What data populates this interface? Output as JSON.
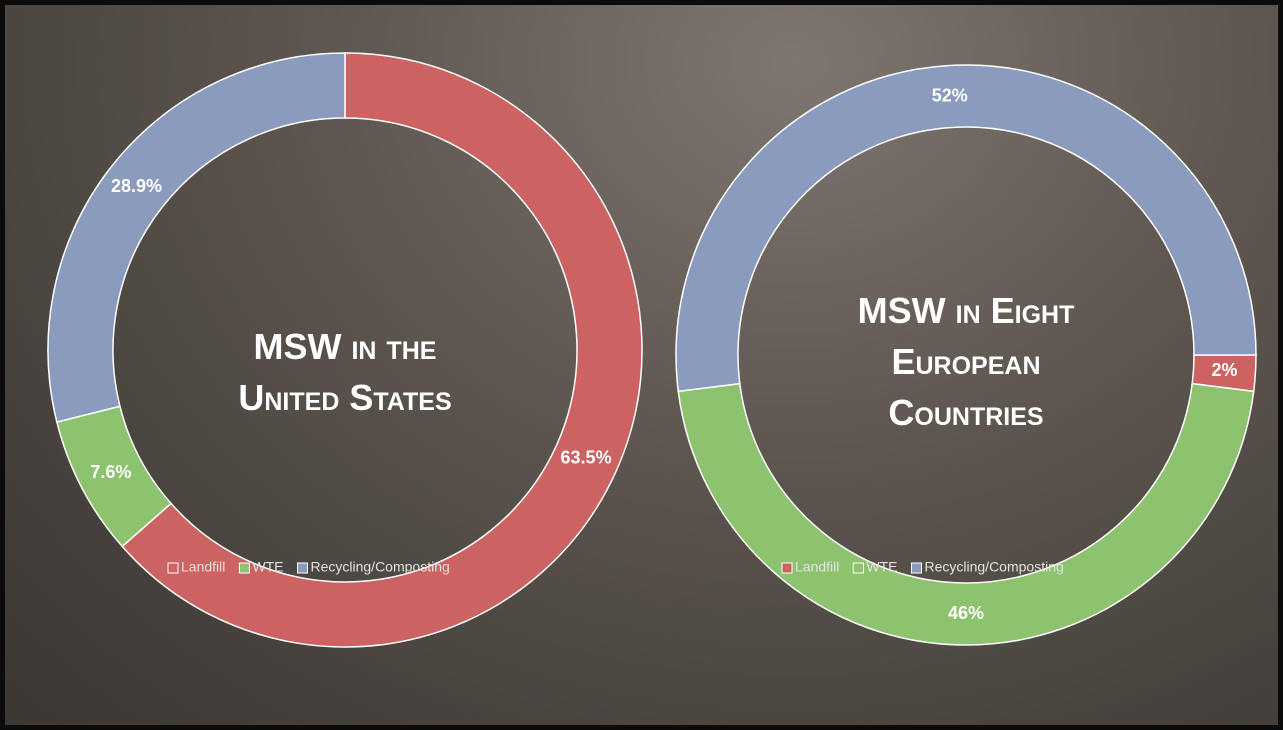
{
  "chart_data": [
    {
      "type": "donut",
      "title": "MSW in the United States",
      "categories": [
        "Landfill",
        "WTE",
        "Recycling/Composting"
      ],
      "values": [
        63.5,
        7.6,
        28.9
      ],
      "value_labels": [
        "63.5%",
        "7.6%",
        "28.9%"
      ],
      "colors": [
        "#cd6262",
        "#8dc26f",
        "#8a9bbd"
      ],
      "legend": "bottom"
    },
    {
      "type": "donut",
      "title": "MSW in Eight European Countries",
      "categories": [
        "Landfill",
        "WTE",
        "Recycling/Composting"
      ],
      "values": [
        2,
        46,
        52
      ],
      "value_labels": [
        "2%",
        "46%",
        "52%"
      ],
      "colors": [
        "#cd6262",
        "#8dc26f",
        "#8a9bbd"
      ],
      "legend": "bottom"
    }
  ]
}
